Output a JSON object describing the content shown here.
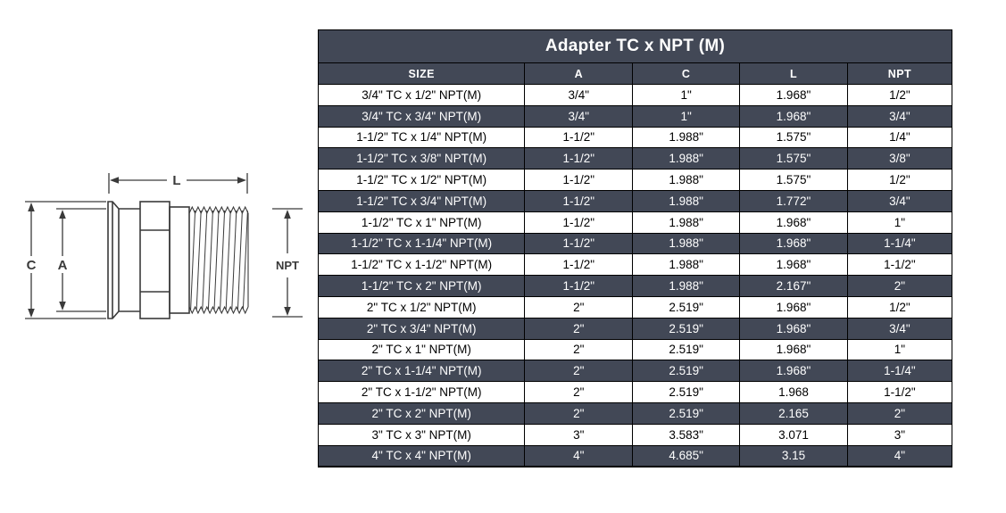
{
  "table": {
    "title": "Adapter TC x NPT (M)",
    "columns": [
      "SIZE",
      "A",
      "C",
      "L",
      "NPT"
    ],
    "rows": [
      [
        "3/4\" TC x 1/2\" NPT(M)",
        "3/4\"",
        "1\"",
        "1.968\"",
        "1/2\""
      ],
      [
        "3/4\" TC x 3/4\" NPT(M)",
        "3/4\"",
        "1\"",
        "1.968\"",
        "3/4\""
      ],
      [
        "1-1/2\" TC x 1/4\" NPT(M)",
        "1-1/2\"",
        "1.988\"",
        "1.575\"",
        "1/4\""
      ],
      [
        "1-1/2\" TC x 3/8\" NPT(M)",
        "1-1/2\"",
        "1.988\"",
        "1.575\"",
        "3/8\""
      ],
      [
        "1-1/2\" TC x 1/2\" NPT(M)",
        "1-1/2\"",
        "1.988\"",
        "1.575\"",
        "1/2\""
      ],
      [
        "1-1/2\" TC x 3/4\" NPT(M)",
        "1-1/2\"",
        "1.988\"",
        "1.772\"",
        "3/4\""
      ],
      [
        "1-1/2\" TC x 1\" NPT(M)",
        "1-1/2\"",
        "1.988\"",
        "1.968\"",
        "1\""
      ],
      [
        "1-1/2\" TC x 1-1/4\" NPT(M)",
        "1-1/2\"",
        "1.988\"",
        "1.968\"",
        "1-1/4\""
      ],
      [
        "1-1/2\" TC x 1-1/2\" NPT(M)",
        "1-1/2\"",
        "1.988\"",
        "1.968\"",
        "1-1/2\""
      ],
      [
        "1-1/2\" TC x 2\" NPT(M)",
        "1-1/2\"",
        "1.988\"",
        "2.167\"",
        "2\""
      ],
      [
        "2\" TC x 1/2\" NPT(M)",
        "2\"",
        "2.519\"",
        "1.968\"",
        "1/2\""
      ],
      [
        "2\" TC x 3/4\" NPT(M)",
        "2\"",
        "2.519\"",
        "1.968\"",
        "3/4\""
      ],
      [
        "2\" TC x 1\" NPT(M)",
        "2\"",
        "2.519\"",
        "1.968\"",
        "1\""
      ],
      [
        "2\" TC x 1-1/4\" NPT(M)",
        "2\"",
        "2.519\"",
        "1.968\"",
        "1-1/4\""
      ],
      [
        "2\" TC x 1-1/2\" NPT(M)",
        "2\"",
        "2.519\"",
        "1.968",
        "1-1/2\""
      ],
      [
        "2\" TC x 2\" NPT(M)",
        "2\"",
        "2.519\"",
        "2.165",
        "2\""
      ],
      [
        "3\" TC x 3\" NPT(M)",
        "3\"",
        "3.583\"",
        "3.071",
        "3\""
      ],
      [
        "4\" TC x 4\" NPT(M)",
        "4\"",
        "4.685\"",
        "3.15",
        "4\""
      ]
    ]
  },
  "diagram": {
    "labels": {
      "l": "L",
      "c": "C",
      "a": "A",
      "npt": "NPT"
    }
  },
  "colors": {
    "dark_bg": "#424856",
    "row_bg": "#ffffff",
    "grid_border": "#000000",
    "text_light": "#ffffff",
    "text_dark": "#000000",
    "line_art": "#3a3a3a"
  }
}
